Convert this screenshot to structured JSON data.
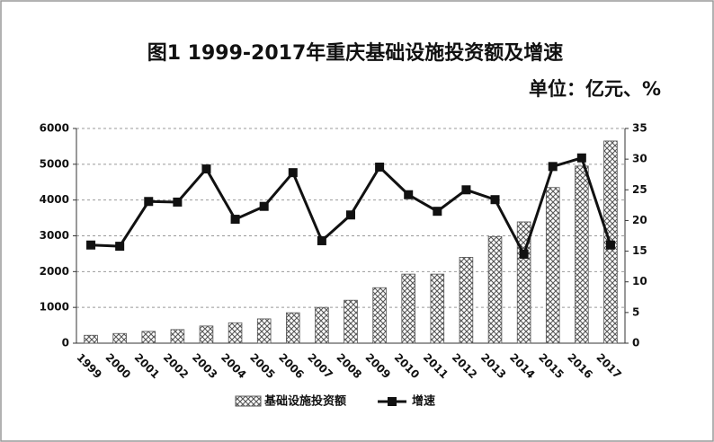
{
  "chart_data": {
    "type": "bar-line",
    "title": "图1  1999-2017年重庆基础设施投资额及增速",
    "subtitle": "单位：亿元、%",
    "categories": [
      "1999",
      "2000",
      "2001",
      "2002",
      "2003",
      "2004",
      "2005",
      "2006",
      "2007",
      "2008",
      "2009",
      "2010",
      "2011",
      "2012",
      "2013",
      "2014",
      "2015",
      "2016",
      "2017"
    ],
    "series": [
      {
        "name": "基础设施投资额",
        "type": "bar",
        "color": "#555555",
        "values": [
          220,
          270,
          330,
          380,
          480,
          570,
          680,
          850,
          1000,
          1200,
          1550,
          1930,
          1930,
          2400,
          2980,
          3390,
          4350,
          4950,
          5650
        ]
      },
      {
        "name": "增速",
        "type": "line",
        "axis": "y2",
        "color": "#111111",
        "values": [
          16.0,
          15.8,
          23.1,
          23.0,
          28.4,
          20.2,
          22.3,
          27.8,
          16.7,
          20.9,
          28.7,
          24.2,
          21.5,
          25.0,
          23.4,
          14.5,
          28.8,
          30.2,
          16.0
        ]
      }
    ],
    "ylim": [
      0,
      6000
    ],
    "yticks": [
      0,
      1000,
      2000,
      3000,
      4000,
      5000,
      6000
    ],
    "y2lim": [
      0,
      35
    ],
    "y2ticks": [
      0,
      5,
      10,
      15,
      20,
      25,
      30,
      35
    ],
    "grid": true,
    "legend": "bottom"
  }
}
